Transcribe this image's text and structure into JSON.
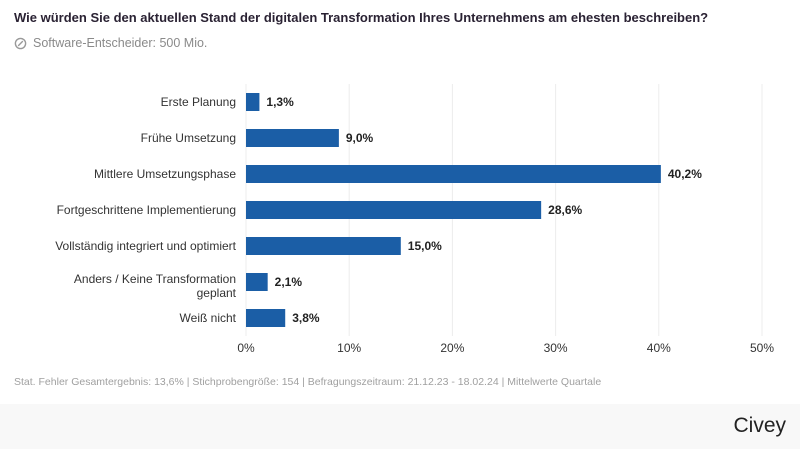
{
  "title": "Wie würden Sie den aktuellen Stand der digitalen Transformation Ihres Unternehmens am ehesten beschreiben?",
  "subtitle": "Software-Entscheider: 500 Mio.",
  "subtitle_icon": "target-icon",
  "note": "Stat. Fehler Gesamtergebnis: 13,6% | Stichprobengröße: 154 | Befragungszeitraum: 21.12.23 - 18.02.24 | Mittelwerte Quartale",
  "logo": "Civey",
  "chart_data": {
    "type": "bar",
    "orientation": "horizontal",
    "categories": [
      "Erste Planung",
      "Frühe Umsetzung",
      "Mittlere Umsetzungsphase",
      "Fortgeschrittene Implementierung",
      "Vollständig integriert und optimiert",
      "Anders / Keine Transformation geplant",
      "Weiß nicht"
    ],
    "values": [
      1.3,
      9.0,
      40.2,
      28.6,
      15.0,
      2.1,
      3.8
    ],
    "data_labels": [
      "1,3%",
      "9,0%",
      "40,2%",
      "28,6%",
      "15,0%",
      "2,1%",
      "3,8%"
    ],
    "xlim": [
      0,
      50
    ],
    "x_ticks": [
      "0%",
      "10%",
      "20%",
      "30%",
      "40%",
      "50%"
    ],
    "grid": true,
    "bar_color": "#1b5ea6"
  }
}
